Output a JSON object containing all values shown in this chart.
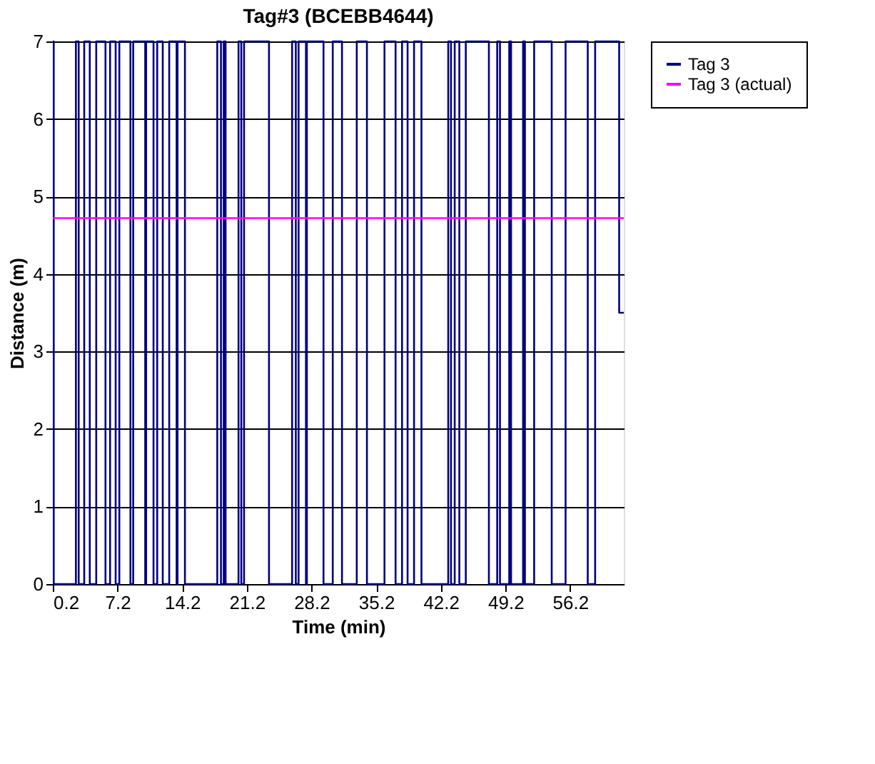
{
  "chart_data": {
    "type": "line",
    "title": "Tag#3 (BCEBB4644)",
    "xlabel": "Time (min)",
    "ylabel": "Distance (m)",
    "xlim": [
      0.2,
      62.0
    ],
    "xticks": [
      0.2,
      7.2,
      14.2,
      21.2,
      28.2,
      35.2,
      42.2,
      49.2,
      56.2
    ],
    "ylim": [
      0,
      7
    ],
    "yticks": [
      0,
      1,
      2,
      3,
      4,
      5,
      6,
      7
    ],
    "grid": "y",
    "legend": "right",
    "line_style": "solid",
    "marker": "none",
    "series": [
      {
        "name": "Tag 3",
        "color": "#000080",
        "x": [
          0.2,
          0.3,
          0.3,
          2.7,
          2.7,
          3.0,
          3.0,
          3.6,
          3.6,
          4.2,
          4.2,
          4.9,
          4.9,
          5.9,
          5.9,
          6.4,
          6.4,
          7.0,
          7.0,
          7.4,
          7.4,
          8.6,
          8.6,
          8.9,
          8.9,
          10.2,
          10.2,
          10.3,
          10.3,
          11.1,
          11.1,
          11.5,
          11.5,
          12.1,
          12.1,
          12.8,
          12.8,
          13.6,
          13.6,
          13.7,
          13.7,
          14.5,
          14.5,
          18.0,
          18.0,
          18.4,
          18.4,
          18.7,
          18.7,
          18.9,
          18.9,
          20.3,
          20.3,
          20.6,
          20.6,
          20.9,
          20.9,
          23.6,
          23.6,
          26.1,
          26.1,
          26.5,
          26.5,
          26.8,
          26.8,
          27.6,
          27.6,
          27.7,
          27.7,
          29.5,
          29.5,
          30.5,
          30.5,
          31.5,
          31.5,
          33.1,
          33.1,
          34.2,
          34.2,
          36.1,
          36.1,
          37.3,
          37.3,
          38.0,
          38.0,
          38.6,
          38.6,
          39.3,
          39.3,
          40.1,
          40.1,
          43.0,
          43.0,
          43.3,
          43.3,
          43.7,
          43.7,
          44.2,
          44.2,
          44.9,
          44.9,
          47.4,
          47.4,
          48.3,
          48.3,
          48.6,
          48.6,
          49.6,
          49.6,
          49.8,
          49.8,
          51.1,
          51.1,
          51.3,
          51.3,
          52.3,
          52.3,
          54.2,
          54.2,
          55.7,
          55.7,
          58.1,
          58.1,
          58.9,
          58.9,
          61.5,
          61.5,
          62.0
        ],
        "values": [
          7,
          7,
          0,
          0,
          7,
          7,
          0,
          0,
          7,
          7,
          0,
          0,
          7,
          7,
          0,
          0,
          7,
          7,
          0,
          0,
          7,
          7,
          0,
          0,
          7,
          7,
          0,
          0,
          7,
          7,
          0,
          0,
          7,
          7,
          0,
          0,
          7,
          7,
          0,
          0,
          7,
          7,
          0,
          0,
          7,
          7,
          0,
          0,
          7,
          7,
          0,
          0,
          7,
          7,
          0,
          0,
          7,
          7,
          0,
          0,
          7,
          7,
          0,
          0,
          7,
          7,
          0,
          0,
          7,
          7,
          0,
          0,
          7,
          7,
          0,
          0,
          7,
          7,
          0,
          0,
          7,
          7,
          0,
          0,
          7,
          7,
          0,
          0,
          7,
          7,
          0,
          0,
          7,
          7,
          0,
          0,
          7,
          7,
          0,
          0,
          7,
          7,
          0,
          0,
          7,
          7,
          0,
          0,
          7,
          7,
          0,
          0,
          7,
          7,
          0,
          0,
          7,
          7,
          0,
          0,
          7,
          7,
          0,
          0,
          7,
          7,
          3.5,
          3.5
        ]
      },
      {
        "name": "Tag 3 (actual)",
        "color": "#ff00ff",
        "x": [
          0.2,
          62.0
        ],
        "values": [
          4.72,
          4.72
        ]
      }
    ]
  }
}
